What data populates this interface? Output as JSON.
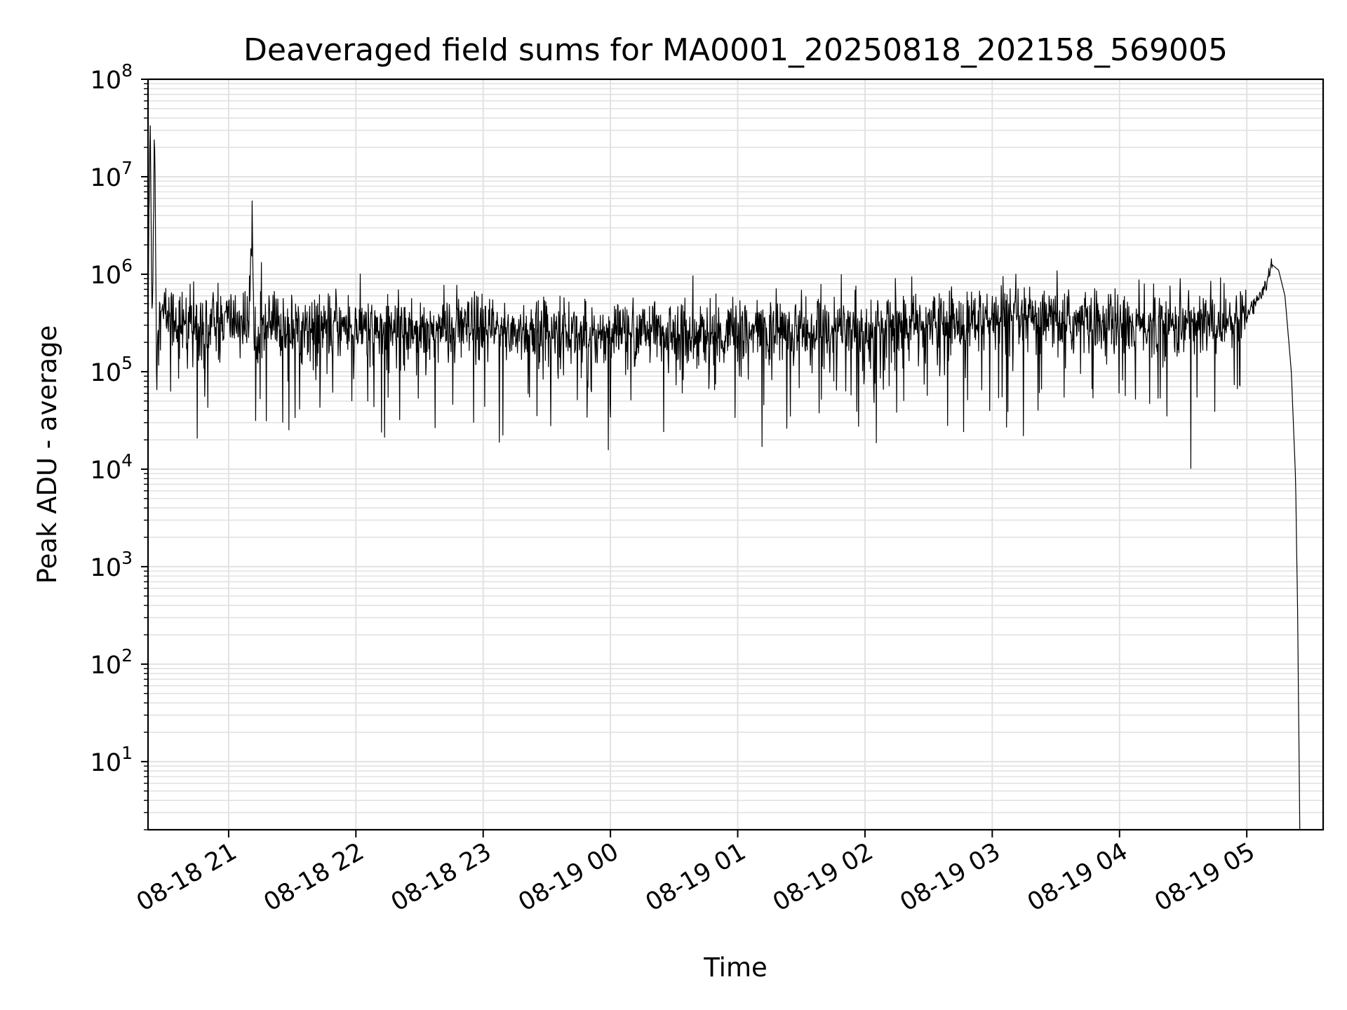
{
  "chart_data": {
    "type": "line",
    "title": "Deaveraged field sums for MA0001_20250818_202158_569005",
    "xlabel": "Time",
    "ylabel": "Peak ADU - average",
    "yscale": "log",
    "xlim": [
      "2025-08-18 20:22",
      "2025-08-19 05:36"
    ],
    "ylim": [
      2,
      100000000
    ],
    "grid": true,
    "x_tick_labels": [
      "08-18 21",
      "08-18 22",
      "08-18 23",
      "08-19 00",
      "08-19 01",
      "08-19 02",
      "08-19 03",
      "08-19 04",
      "08-19 05"
    ],
    "y_ticks": [
      {
        "base": "10",
        "exp": "1"
      },
      {
        "base": "10",
        "exp": "2"
      },
      {
        "base": "10",
        "exp": "3"
      },
      {
        "base": "10",
        "exp": "4"
      },
      {
        "base": "10",
        "exp": "5"
      },
      {
        "base": "10",
        "exp": "6"
      },
      {
        "base": "10",
        "exp": "7"
      },
      {
        "base": "10",
        "exp": "8"
      }
    ],
    "series": [
      {
        "color": "#000000",
        "x": [
          "2025-08-18 20:22",
          "2025-08-18 20:23",
          "2025-08-18 20:24",
          "2025-08-18 20:25",
          "2025-08-18 20:26",
          "2025-08-18 20:30",
          "2025-08-18 20:40",
          "2025-08-18 20:50",
          "2025-08-18 21:00",
          "2025-08-18 21:10",
          "2025-08-18 21:11",
          "2025-08-18 21:12",
          "2025-08-18 21:20",
          "2025-08-18 21:30",
          "2025-08-18 21:50",
          "2025-08-18 22:10",
          "2025-08-18 22:30",
          "2025-08-18 22:50",
          "2025-08-18 23:10",
          "2025-08-18 23:30",
          "2025-08-18 23:50",
          "2025-08-19 00:10",
          "2025-08-19 00:30",
          "2025-08-19 00:50",
          "2025-08-19 01:10",
          "2025-08-19 01:30",
          "2025-08-19 01:50",
          "2025-08-19 02:10",
          "2025-08-19 02:30",
          "2025-08-19 02:50",
          "2025-08-19 03:10",
          "2025-08-19 03:30",
          "2025-08-19 03:50",
          "2025-08-19 04:10",
          "2025-08-19 04:30",
          "2025-08-19 04:50",
          "2025-08-19 05:00",
          "2025-08-19 05:05",
          "2025-08-19 05:10",
          "2025-08-19 05:12",
          "2025-08-19 05:15",
          "2025-08-19 05:18",
          "2025-08-19 05:21",
          "2025-08-19 05:23",
          "2025-08-19 05:24",
          "2025-08-19 05:25"
        ],
        "y": [
          400000,
          35000000,
          300000,
          38000000,
          300000,
          400000,
          300000,
          300000,
          350000,
          300000,
          7500000,
          300000,
          300000,
          280000,
          300000,
          270000,
          280000,
          270000,
          260000,
          260000,
          250000,
          250000,
          250000,
          240000,
          250000,
          270000,
          270000,
          290000,
          300000,
          330000,
          330000,
          320000,
          320000,
          300000,
          300000,
          320000,
          380000,
          550000,
          900000,
          1250000,
          1100000,
          600000,
          100000,
          8000,
          300,
          2
        ]
      }
    ]
  }
}
